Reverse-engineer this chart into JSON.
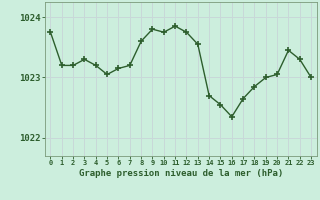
{
  "x": [
    0,
    1,
    2,
    3,
    4,
    5,
    6,
    7,
    8,
    9,
    10,
    11,
    12,
    13,
    14,
    15,
    16,
    17,
    18,
    19,
    20,
    21,
    22,
    23
  ],
  "y": [
    1023.75,
    1023.2,
    1023.2,
    1023.3,
    1023.2,
    1023.05,
    1023.15,
    1023.2,
    1023.6,
    1023.8,
    1023.75,
    1023.85,
    1023.75,
    1023.55,
    1022.7,
    1022.55,
    1022.35,
    1022.65,
    1022.85,
    1023.0,
    1023.05,
    1023.45,
    1023.3,
    1023.0
  ],
  "line_color": "#2d5e2d",
  "marker_color": "#2d5e2d",
  "bg_color": "#cceedd",
  "grid_color": "#c8d8d8",
  "xlabel": "Graphe pression niveau de la mer (hPa)",
  "xlabel_color": "#2d5e2d",
  "tick_color": "#2d5e2d",
  "axis_color": "#7a9a7a",
  "yticks": [
    1022,
    1023,
    1024
  ],
  "ylim": [
    1021.7,
    1024.25
  ],
  "xlim": [
    -0.5,
    23.5
  ],
  "xtick_labels": [
    "0",
    "1",
    "2",
    "3",
    "4",
    "5",
    "6",
    "7",
    "8",
    "9",
    "10",
    "11",
    "12",
    "13",
    "14",
    "15",
    "16",
    "17",
    "18",
    "19",
    "20",
    "21",
    "22",
    "23"
  ]
}
